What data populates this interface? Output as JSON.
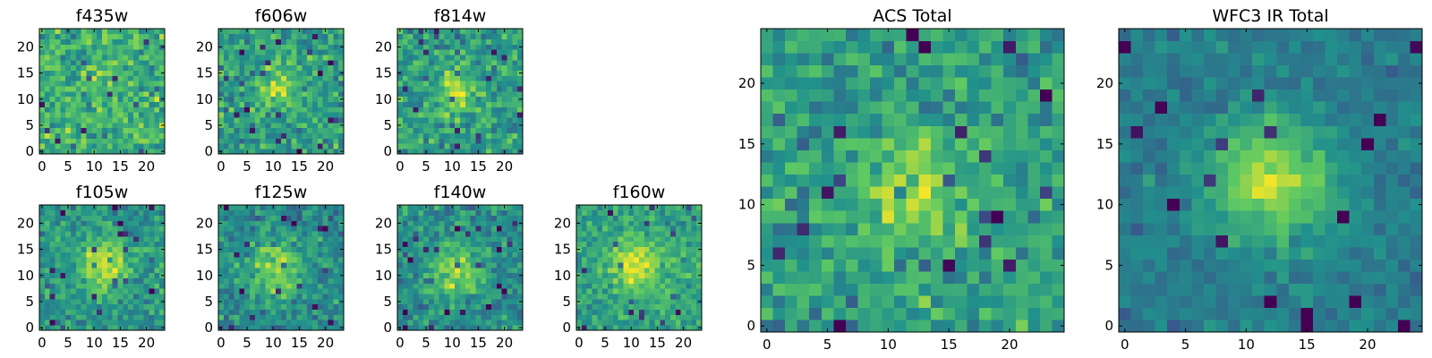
{
  "colormap": {
    "name": "viridis",
    "stops": [
      "#440154",
      "#3b528b",
      "#21918c",
      "#5ec962",
      "#fde725"
    ]
  },
  "chart_data": [
    {
      "type": "heatmap",
      "title": "f435w",
      "grid": [
        24,
        24
      ],
      "x_ticks": [
        "0",
        "5",
        "10",
        "15",
        "20"
      ],
      "y_ticks": [
        "0",
        "5",
        "10",
        "15",
        "20"
      ],
      "center": [
        11,
        12
      ],
      "sigma": 3.0,
      "amp": 0.12,
      "base": 0.62,
      "noise": 0.34,
      "seed": 11
    },
    {
      "type": "heatmap",
      "title": "f606w",
      "grid": [
        24,
        24
      ],
      "x_ticks": [
        "0",
        "5",
        "10",
        "15",
        "20"
      ],
      "y_ticks": [
        "0",
        "5",
        "10",
        "15",
        "20"
      ],
      "center": [
        11,
        12
      ],
      "sigma": 2.4,
      "amp": 0.3,
      "base": 0.56,
      "noise": 0.32,
      "seed": 23
    },
    {
      "type": "heatmap",
      "title": "f814w",
      "grid": [
        24,
        24
      ],
      "x_ticks": [
        "0",
        "5",
        "10",
        "15",
        "20"
      ],
      "y_ticks": [
        "0",
        "5",
        "10",
        "15",
        "20"
      ],
      "center": [
        11,
        12
      ],
      "sigma": 2.6,
      "amp": 0.32,
      "base": 0.56,
      "noise": 0.32,
      "seed": 37
    },
    {
      "type": "heatmap",
      "title": "f105w",
      "grid": [
        24,
        24
      ],
      "x_ticks": [
        "0",
        "5",
        "10",
        "15",
        "20"
      ],
      "y_ticks": [
        "0",
        "5",
        "10",
        "15",
        "20"
      ],
      "center": [
        12,
        12
      ],
      "sigma": 3.4,
      "amp": 0.4,
      "base": 0.52,
      "noise": 0.26,
      "seed": 41
    },
    {
      "type": "heatmap",
      "title": "f125w",
      "grid": [
        24,
        24
      ],
      "x_ticks": [
        "0",
        "5",
        "10",
        "15",
        "20"
      ],
      "y_ticks": [
        "0",
        "5",
        "10",
        "15",
        "20"
      ],
      "center": [
        11,
        11
      ],
      "sigma": 3.6,
      "amp": 0.36,
      "base": 0.48,
      "noise": 0.28,
      "seed": 53
    },
    {
      "type": "heatmap",
      "title": "f140w",
      "grid": [
        24,
        24
      ],
      "x_ticks": [
        "0",
        "5",
        "10",
        "15",
        "20"
      ],
      "y_ticks": [
        "0",
        "5",
        "10",
        "15",
        "20"
      ],
      "center": [
        11,
        11
      ],
      "sigma": 3.2,
      "amp": 0.38,
      "base": 0.5,
      "noise": 0.28,
      "seed": 67
    },
    {
      "type": "heatmap",
      "title": "f160w",
      "grid": [
        24,
        24
      ],
      "x_ticks": [
        "0",
        "5",
        "10",
        "15",
        "20"
      ],
      "y_ticks": [
        "0",
        "5",
        "10",
        "15",
        "20"
      ],
      "center": [
        11,
        12
      ],
      "sigma": 3.4,
      "amp": 0.36,
      "base": 0.58,
      "noise": 0.24,
      "seed": 79
    },
    {
      "type": "heatmap",
      "title": "ACS Total",
      "grid": [
        25,
        25
      ],
      "x_ticks": [
        "0",
        "5",
        "10",
        "15",
        "20"
      ],
      "y_ticks": [
        "0",
        "5",
        "10",
        "15",
        "20"
      ],
      "center": [
        12,
        11
      ],
      "sigma": 3.0,
      "amp": 0.3,
      "base": 0.55,
      "noise": 0.3,
      "seed": 97
    },
    {
      "type": "heatmap",
      "title": "WFC3 IR Total",
      "grid": [
        25,
        25
      ],
      "x_ticks": [
        "0",
        "5",
        "10",
        "15",
        "20"
      ],
      "y_ticks": [
        "0",
        "5",
        "10",
        "15",
        "20"
      ],
      "center": [
        12,
        12
      ],
      "sigma": 3.4,
      "amp": 0.48,
      "base": 0.42,
      "noise": 0.16,
      "seed": 113
    }
  ]
}
